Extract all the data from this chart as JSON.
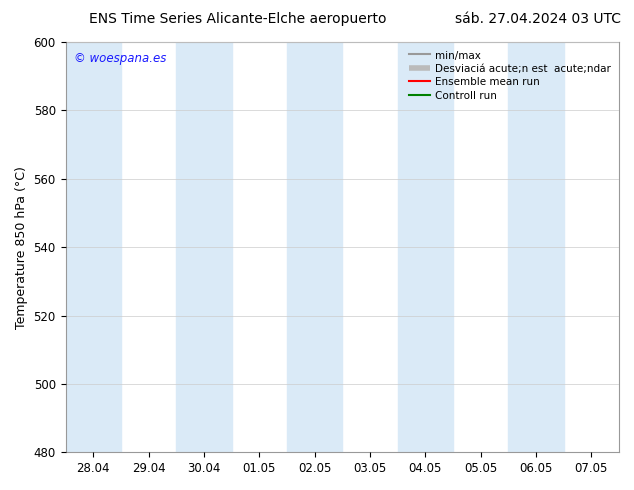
{
  "title_left": "ENS Time Series Alicante-Elche aeropuerto",
  "title_right": "sáb. 27.04.2024 03 UTC",
  "ylabel": "Temperature 850 hPa (°C)",
  "watermark": "© woespana.es",
  "ylim": [
    480,
    600
  ],
  "yticks": [
    480,
    500,
    520,
    540,
    560,
    580,
    600
  ],
  "xtick_labels": [
    "28.04",
    "29.04",
    "30.04",
    "01.05",
    "02.05",
    "03.05",
    "04.05",
    "05.05",
    "06.05",
    "07.05"
  ],
  "bg_color": "#ffffff",
  "plot_bg_color": "#ffffff",
  "shaded_band_color": "#daeaf7",
  "legend_labels": [
    "min/max",
    "Desviaciá acute;n est  acute;ndar",
    "Ensemble mean run",
    "Controll run"
  ],
  "legend_colors": [
    "#aaaaaa",
    "#cccccc",
    "#ff0000",
    "#008000"
  ],
  "title_fontsize": 10,
  "label_fontsize": 9,
  "tick_fontsize": 8.5
}
